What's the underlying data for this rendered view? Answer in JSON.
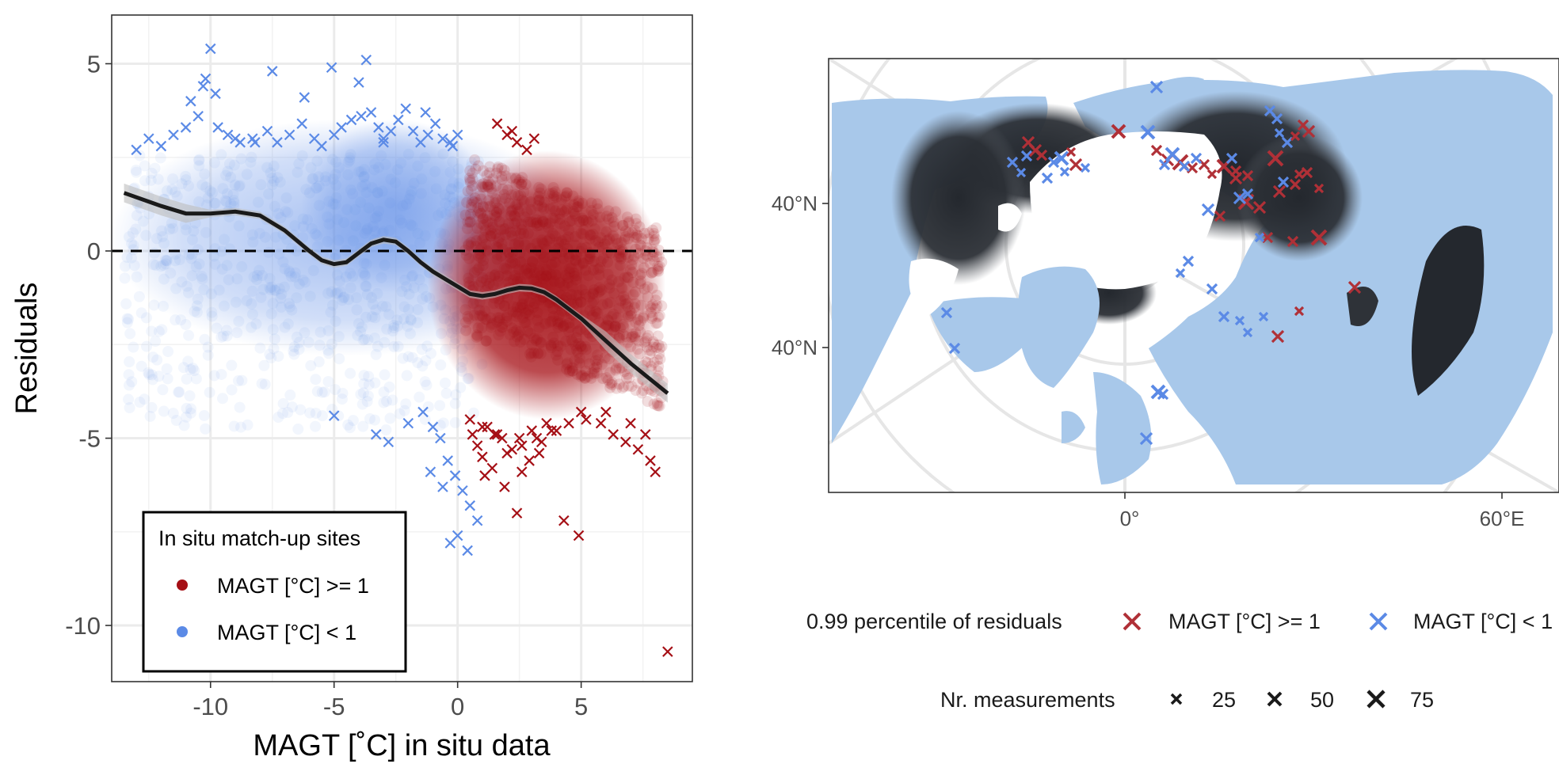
{
  "chart_data": [
    {
      "type": "scatter",
      "xlabel": "MAGT [˚C] in situ data",
      "ylabel": "Residuals",
      "xlim": [
        -14,
        9.5
      ],
      "ylim": [
        -11.5,
        6.3
      ],
      "x_ticks": [
        "-10",
        "-5",
        "0",
        "5"
      ],
      "x_tick_values": [
        -10,
        -5,
        0,
        5
      ],
      "y_ticks": [
        "5",
        "0",
        "-5",
        "-10"
      ],
      "y_tick_values": [
        5,
        0,
        -5,
        -10
      ],
      "grid": true,
      "reference_line": {
        "y": 0,
        "style": "dashed"
      },
      "legend": {
        "title": "In situ match-up sites",
        "placement": "bottom-left",
        "entries": [
          {
            "label": "MAGT [°C] >= 1",
            "color": "#a50f15"
          },
          {
            "label": "MAGT [°C] < 1",
            "color": "#5b8ae6"
          }
        ]
      },
      "colors": {
        "warm": "#a50f15",
        "cold": "#5b8ae6",
        "smooth": "#1a1a1a",
        "band": "#bdbdbd"
      },
      "smooth_curve": {
        "x": [
          -13.5,
          -12,
          -11,
          -10,
          -9,
          -8,
          -7,
          -6,
          -5.5,
          -5,
          -4.5,
          -4,
          -3.5,
          -3,
          -2.5,
          -2,
          -1.5,
          -1,
          -0.5,
          0,
          0.5,
          1,
          1.5,
          2,
          2.5,
          3,
          3.5,
          4,
          5,
          6,
          7,
          8.5
        ],
        "y": [
          1.55,
          1.2,
          1.0,
          1.0,
          1.05,
          0.95,
          0.55,
          0.0,
          -0.25,
          -0.35,
          -0.3,
          -0.05,
          0.2,
          0.3,
          0.25,
          0.0,
          -0.3,
          -0.55,
          -0.75,
          -0.95,
          -1.15,
          -1.2,
          -1.15,
          -1.05,
          -0.98,
          -1.0,
          -1.1,
          -1.3,
          -1.8,
          -2.4,
          -3.0,
          -3.8
        ]
      },
      "outlier_series": [
        {
          "name": "MAGT [°C] >= 1",
          "color": "#a50f15",
          "marker": "x",
          "x": [
            1.6,
            2.0,
            2.4,
            2.8,
            3.1,
            2.2,
            1.2,
            1.5,
            1.8,
            2.5,
            3.0,
            3.6,
            0.8,
            1.0,
            1.4,
            2.0,
            2.6,
            3.2,
            3.8,
            4.5,
            5.2,
            5.8,
            6.3,
            6.8,
            7.3,
            7.8,
            8.0,
            0.6,
            1.0,
            1.6,
            2.2,
            2.9,
            3.4,
            4.0,
            5.0,
            6.0,
            7.0,
            7.6,
            2.4,
            4.3,
            4.9,
            8.5,
            0.5,
            1.1,
            1.9,
            2.6,
            3.3
          ],
          "y": [
            3.4,
            3.1,
            2.9,
            2.7,
            3.0,
            3.2,
            -4.7,
            -4.9,
            -5.0,
            -5.0,
            -4.8,
            -4.6,
            -5.2,
            -5.5,
            -5.8,
            -5.4,
            -5.2,
            -5.0,
            -4.8,
            -4.6,
            -4.5,
            -4.6,
            -4.9,
            -5.1,
            -5.3,
            -5.6,
            -5.9,
            -4.9,
            -4.7,
            -4.9,
            -5.3,
            -5.6,
            -5.1,
            -4.8,
            -4.3,
            -4.3,
            -4.6,
            -4.9,
            -7.0,
            -7.2,
            -7.6,
            -10.7,
            -4.5,
            -6.0,
            -6.3,
            -5.9,
            -5.4
          ]
        },
        {
          "name": "MAGT [°C] < 1",
          "color": "#5b8ae6",
          "marker": "x",
          "x": [
            -13.0,
            -12.5,
            -12.0,
            -11.5,
            -11.0,
            -10.5,
            -10.2,
            -10.0,
            -9.8,
            -9.3,
            -8.8,
            -8.3,
            -7.7,
            -7.3,
            -6.8,
            -6.3,
            -5.8,
            -5.5,
            -5.0,
            -4.7,
            -4.3,
            -4.0,
            -3.7,
            -3.5,
            -3.2,
            -3.0,
            -2.7,
            -2.4,
            -2.1,
            -1.8,
            -1.5,
            -1.2,
            -0.9,
            -0.6,
            -0.3,
            0.0,
            -10.8,
            -10.3,
            -9.7,
            -9.0,
            -8.2,
            -7.5,
            -6.2,
            -5.1,
            -3.9,
            -3.0,
            -1.3,
            -0.2,
            -5.0,
            -3.3,
            -2.8,
            -2.0,
            -1.4,
            -1.0,
            -0.7,
            -0.4,
            -0.1,
            0.2,
            0.5,
            0.8,
            -0.6,
            0.0,
            0.4,
            -1.1,
            -0.3
          ],
          "y": [
            2.7,
            3.0,
            2.8,
            3.1,
            3.3,
            3.6,
            4.6,
            5.4,
            4.2,
            3.1,
            2.9,
            3.0,
            3.2,
            2.9,
            3.1,
            3.4,
            3.0,
            2.8,
            3.1,
            3.3,
            3.5,
            4.5,
            5.1,
            3.7,
            3.3,
            2.9,
            3.2,
            3.5,
            3.8,
            3.2,
            2.9,
            3.1,
            3.4,
            3.0,
            2.9,
            3.1,
            4.0,
            4.4,
            3.3,
            3.0,
            2.9,
            4.8,
            4.1,
            4.9,
            3.6,
            3.0,
            3.7,
            2.8,
            -4.4,
            -4.9,
            -5.1,
            -4.6,
            -4.3,
            -4.7,
            -5.0,
            -5.6,
            -6.0,
            -6.4,
            -6.8,
            -7.2,
            -6.3,
            -7.6,
            -8.0,
            -5.9,
            -7.8
          ]
        }
      ],
      "density_clouds": [
        {
          "name": "MAGT [°C] >= 1",
          "color": "#a50f15",
          "x_range": [
            0.3,
            8.3
          ],
          "y_range": [
            -4.2,
            2.6
          ]
        },
        {
          "name": "MAGT [°C] < 1",
          "color": "#5b8ae6",
          "x_range": [
            -13.5,
            1.0
          ],
          "y_range": [
            -4.8,
            2.6
          ]
        }
      ]
    },
    {
      "type": "map",
      "projection": "north polar azimuthal",
      "lat_labels": [
        "40°N",
        "40°N"
      ],
      "lon_labels": [
        "0°",
        "60°E"
      ],
      "colors": {
        "water": "#a8c8ea",
        "frame": "#333333",
        "permafrost_dark": "#24282e",
        "graticule": "#e8e8e8"
      },
      "legend": {
        "color_title": "0.99 percentile of residuals",
        "color_entries": [
          {
            "label": "MAGT [°C] >= 1",
            "color": "#b03037"
          },
          {
            "label": "MAGT [°C] < 1",
            "color": "#5b8ae6"
          }
        ],
        "size_title": "Nr. measurements",
        "size_entries": [
          "25",
          "50",
          "75"
        ]
      }
    }
  ]
}
